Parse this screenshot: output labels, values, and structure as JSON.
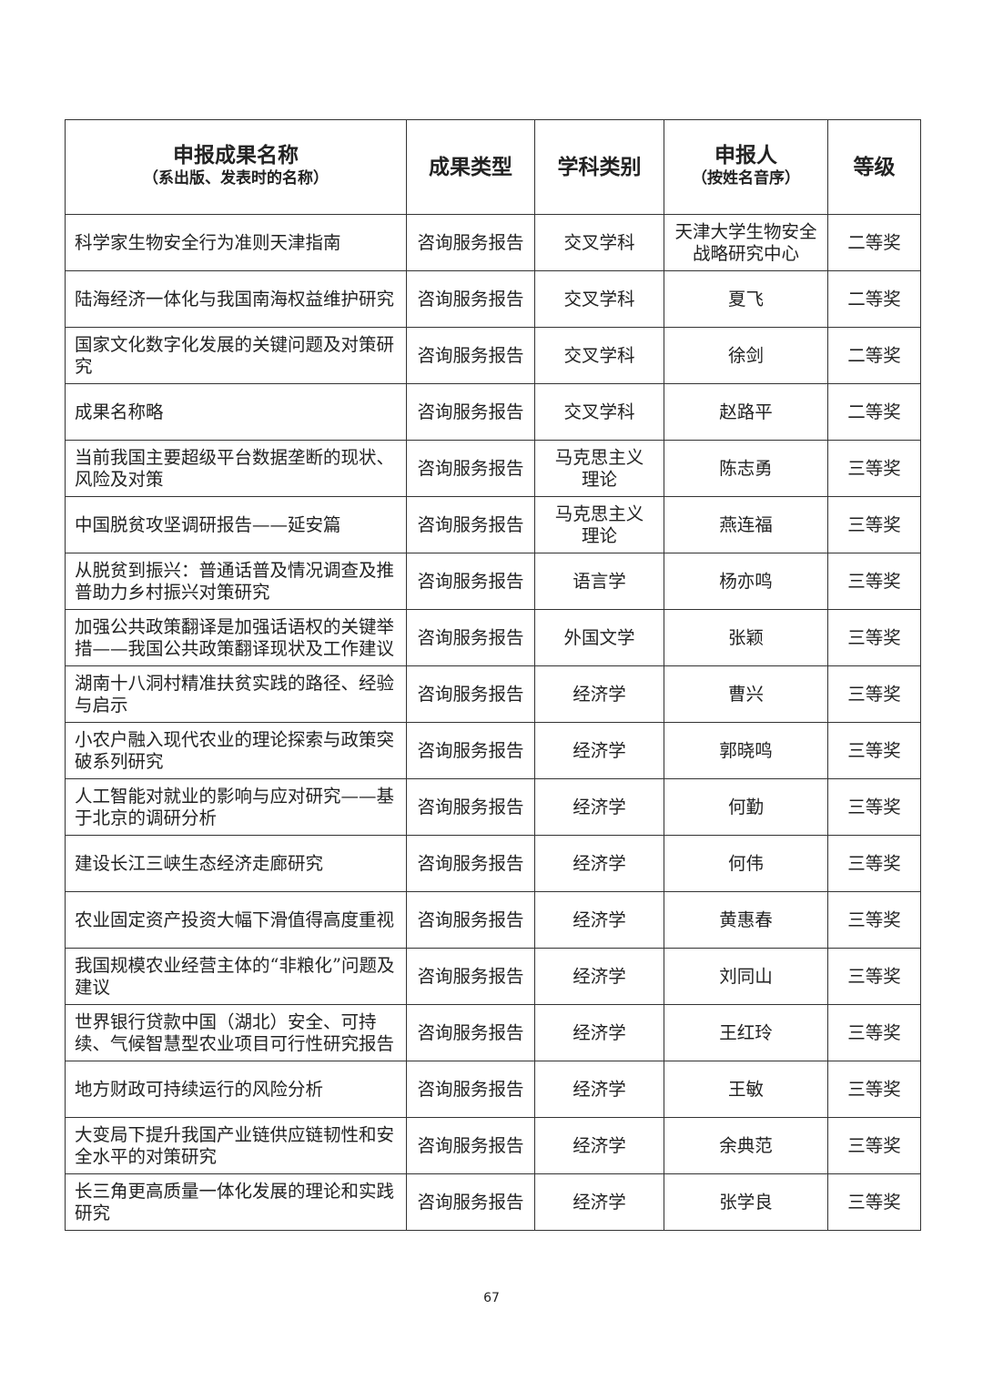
{
  "header": {
    "columns": [
      {
        "title": "申报成果名称",
        "subtitle": "（系出版、发表时的名称）"
      },
      {
        "title": "成果类型"
      },
      {
        "title": "学科类别"
      },
      {
        "title": "申报人",
        "subtitle": "（按姓名音序）"
      },
      {
        "title": "等级"
      }
    ]
  },
  "table": {
    "rows": [
      [
        "科学家生物安全行为准则天津指南",
        "咨询服务报告",
        "交叉学科",
        "天津大学生物安全战略研究中心",
        "二等奖"
      ],
      [
        "陆海经济一体化与我国南海权益维护研究",
        "咨询服务报告",
        "交叉学科",
        "夏飞",
        "二等奖"
      ],
      [
        "国家文化数字化发展的关键问题及对策研究",
        "咨询服务报告",
        "交叉学科",
        "徐剑",
        "二等奖"
      ],
      [
        "成果名称略",
        "咨询服务报告",
        "交叉学科",
        "赵路平",
        "二等奖"
      ],
      [
        "当前我国主要超级平台数据垄断的现状、风险及对策",
        "咨询服务报告",
        "马克思主义理论",
        "陈志勇",
        "三等奖"
      ],
      [
        "中国脱贫攻坚调研报告——延安篇",
        "咨询服务报告",
        "马克思主义理论",
        "燕连福",
        "三等奖"
      ],
      [
        "从脱贫到振兴：普通话普及情况调查及推普助力乡村振兴对策研究",
        "咨询服务报告",
        "语言学",
        "杨亦鸣",
        "三等奖"
      ],
      [
        "加强公共政策翻译是加强话语权的关键举措——我国公共政策翻译现状及工作建议",
        "咨询服务报告",
        "外国文学",
        "张颖",
        "三等奖"
      ],
      [
        "湖南十八洞村精准扶贫实践的路径、经验与启示",
        "咨询服务报告",
        "经济学",
        "曹兴",
        "三等奖"
      ],
      [
        "小农户融入现代农业的理论探索与政策突破系列研究",
        "咨询服务报告",
        "经济学",
        "郭晓鸣",
        "三等奖"
      ],
      [
        "人工智能对就业的影响与应对研究——基于北京的调研分析",
        "咨询服务报告",
        "经济学",
        "何勤",
        "三等奖"
      ],
      [
        "建设长江三峡生态经济走廊研究",
        "咨询服务报告",
        "经济学",
        "何伟",
        "三等奖"
      ],
      [
        "农业固定资产投资大幅下滑值得高度重视",
        "咨询服务报告",
        "经济学",
        "黄惠春",
        "三等奖"
      ],
      [
        "我国规模农业经营主体的“非粮化”问题及建议",
        "咨询服务报告",
        "经济学",
        "刘同山",
        "三等奖"
      ],
      [
        "世界银行贷款中国（湖北）安全、可持续、气候智慧型农业项目可行性研究报告",
        "咨询服务报告",
        "经济学",
        "王红玲",
        "三等奖"
      ],
      [
        "地方财政可持续运行的风险分析",
        "咨询服务报告",
        "经济学",
        "王敏",
        "三等奖"
      ],
      [
        "大变局下提升我国产业链供应链韧性和安全水平的对策研究",
        "咨询服务报告",
        "经济学",
        "余典范",
        "三等奖"
      ],
      [
        "长三角更高质量一体化发展的理论和实践研究",
        "咨询服务报告",
        "经济学",
        "张学良",
        "三等奖"
      ]
    ]
  },
  "footer": {
    "page_number": "67"
  }
}
